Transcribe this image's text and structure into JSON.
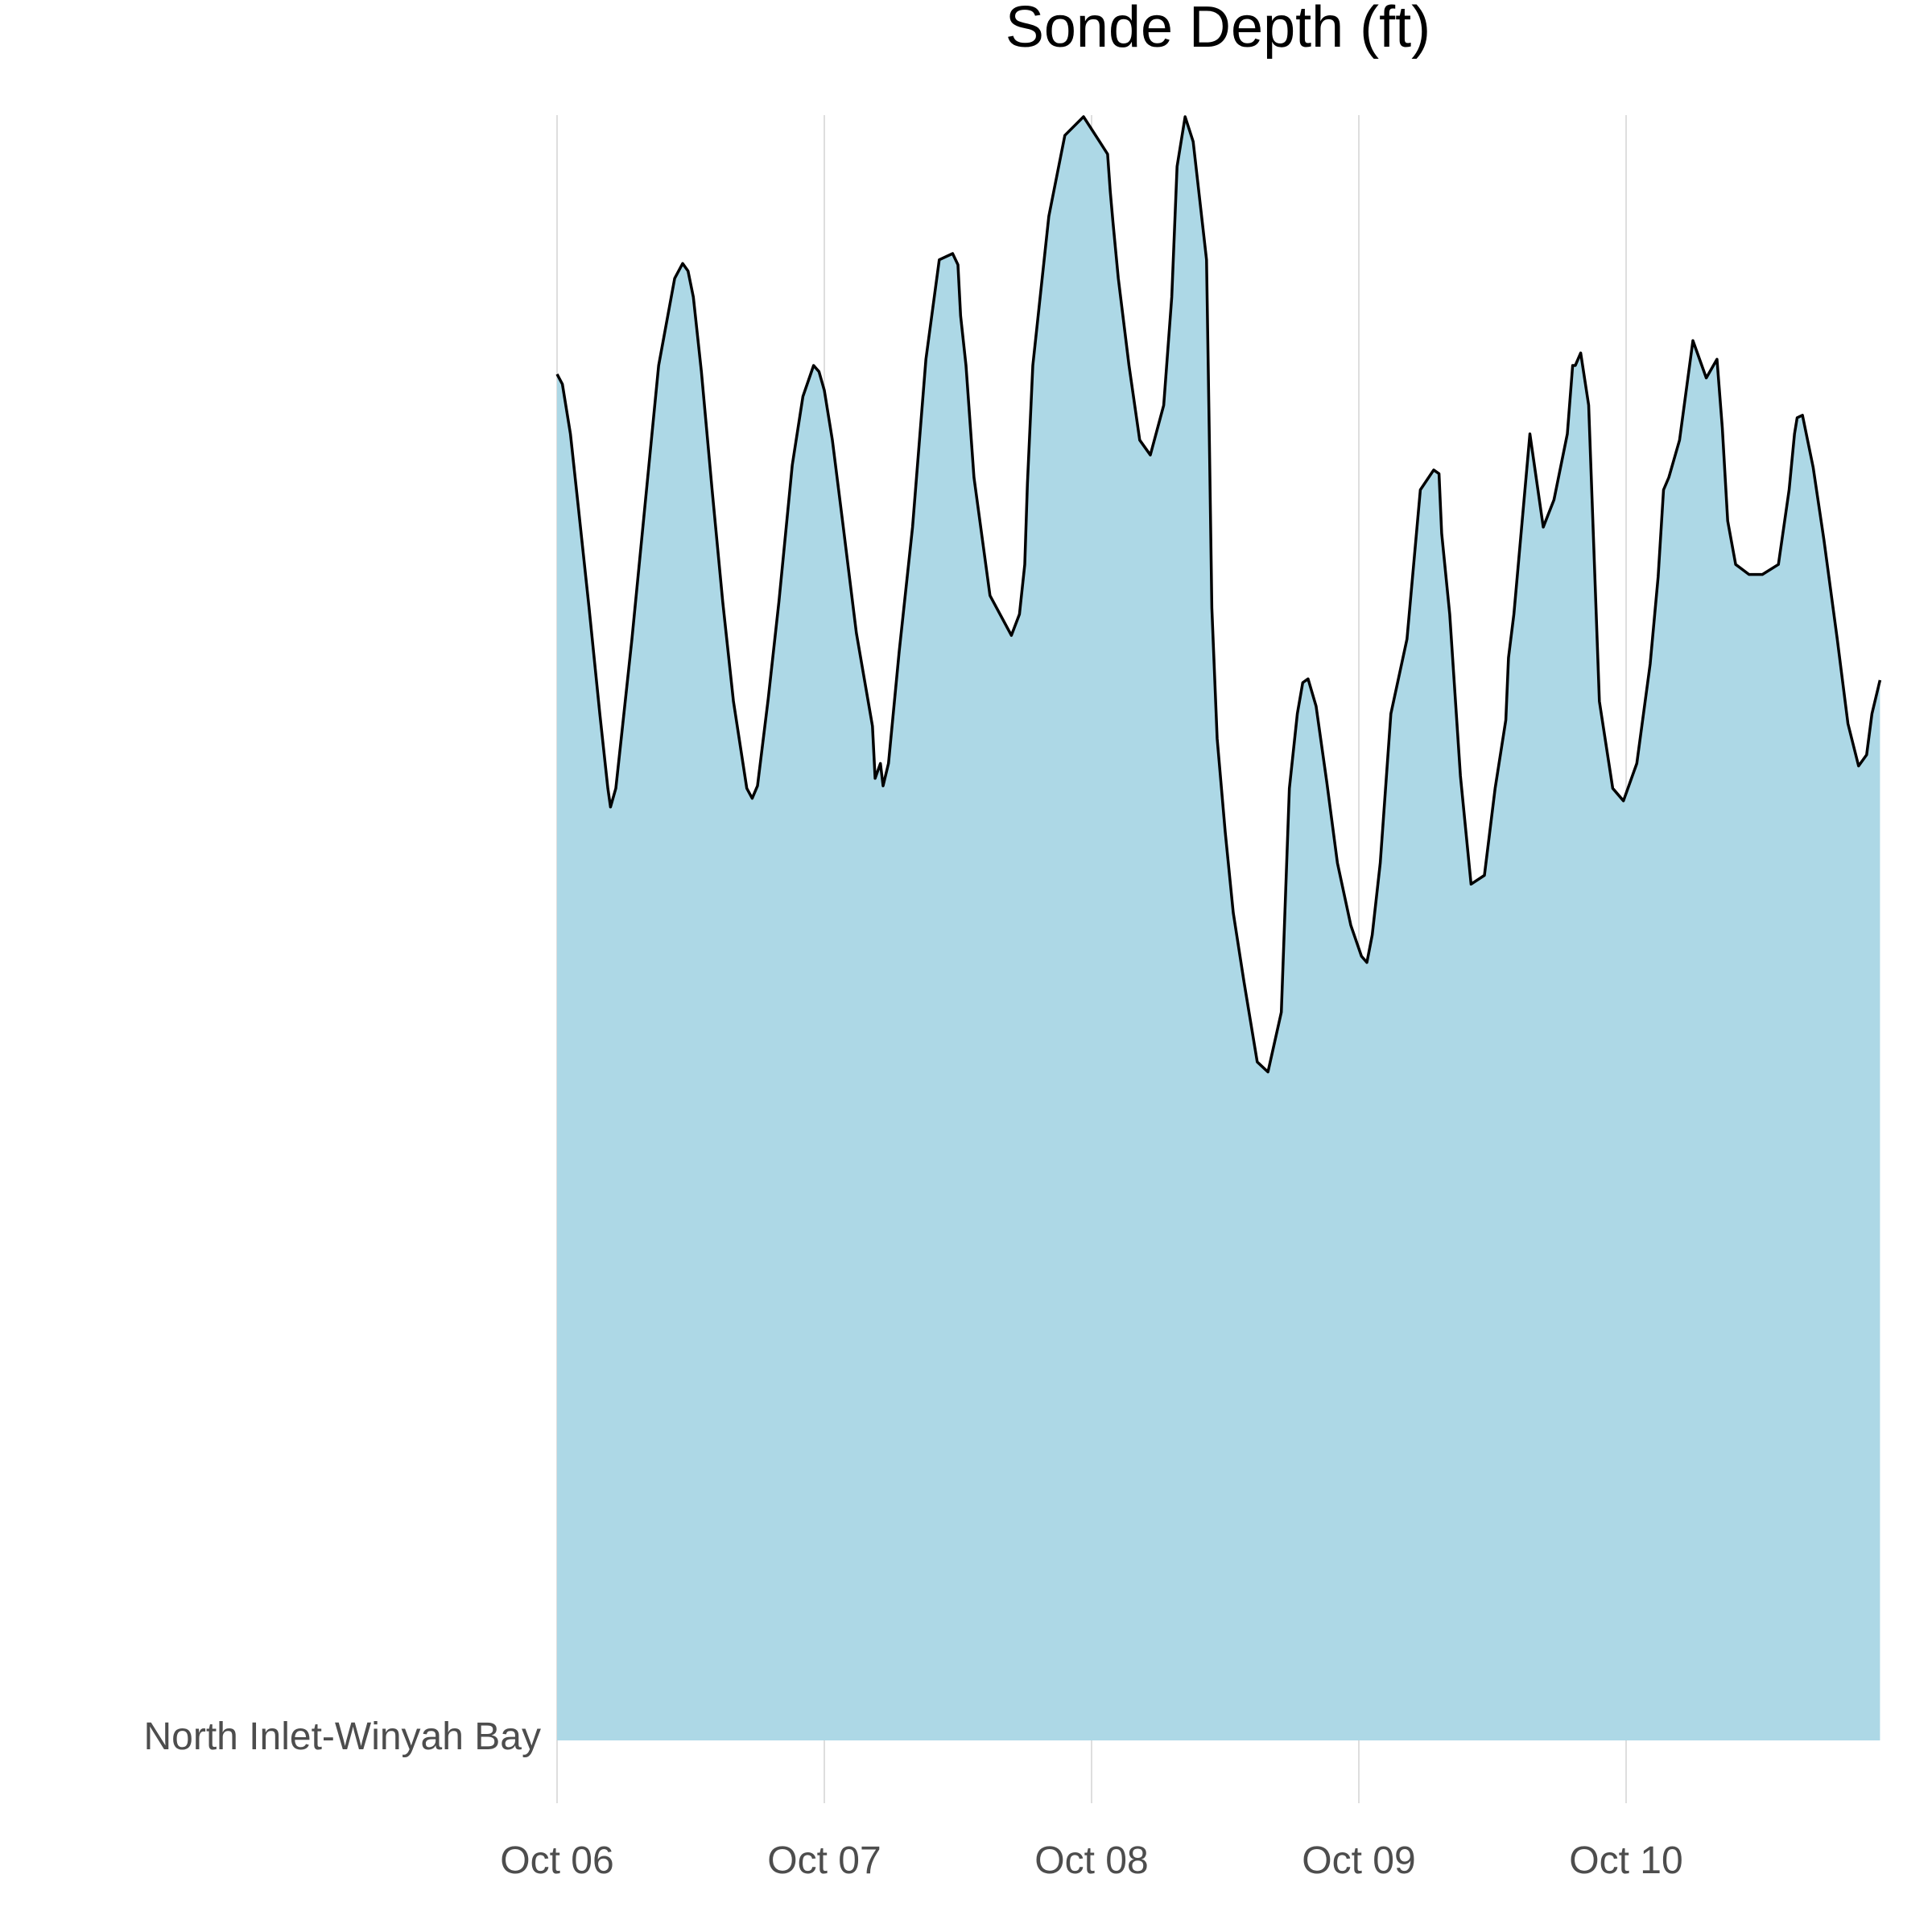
{
  "chart_data": {
    "type": "area",
    "title": "Sonde Depth (ft)",
    "xlabel": "",
    "ylabel": "",
    "y_category": "North Inlet-Winyah Bay",
    "x_tick_labels": [
      "Oct 06",
      "Oct 07",
      "Oct 08",
      "Oct 09",
      "Oct 10"
    ],
    "x_tick_days": [
      0,
      1,
      2,
      3,
      4
    ],
    "xlim_days": [
      0,
      4.95
    ],
    "ylim": [
      0,
      1
    ],
    "grid": "vertical major gridlines only",
    "fill_color": "#add8e6",
    "line_color": "#000000",
    "series": [
      {
        "x_days": [
          0.0,
          0.02,
          0.05,
          0.08,
          0.12,
          0.16,
          0.19,
          0.2,
          0.22,
          0.24,
          0.28,
          0.33,
          0.38,
          0.44,
          0.47,
          0.49,
          0.51,
          0.54,
          0.58,
          0.62,
          0.66,
          0.71,
          0.73,
          0.75,
          0.79,
          0.83,
          0.88,
          0.92,
          0.96,
          0.98,
          1.0,
          1.03,
          1.07,
          1.12,
          1.18,
          1.19,
          1.21,
          1.22,
          1.24,
          1.28,
          1.33,
          1.38,
          1.43,
          1.48,
          1.5,
          1.51,
          1.53,
          1.56,
          1.62,
          1.7,
          1.73,
          1.75,
          1.76,
          1.78,
          1.84,
          1.9,
          1.97,
          2.03,
          2.06,
          2.07,
          2.08,
          2.1,
          2.14,
          2.18,
          2.22,
          2.27,
          2.3,
          2.32,
          2.35,
          2.38,
          2.43,
          2.44,
          2.45,
          2.47,
          2.5,
          2.53,
          2.57,
          2.62,
          2.66,
          2.71,
          2.74,
          2.77,
          2.79,
          2.81,
          2.84,
          2.88,
          2.92,
          2.97,
          3.01,
          3.03,
          3.05,
          3.08,
          3.12,
          3.18,
          3.23,
          3.28,
          3.3,
          3.31,
          3.34,
          3.38,
          3.42,
          3.47,
          3.51,
          3.55,
          3.56,
          3.58,
          3.6,
          3.64,
          3.69,
          3.73,
          3.78,
          3.8,
          3.81,
          3.83,
          3.86,
          3.9,
          3.95,
          3.99,
          4.04,
          4.09,
          4.12,
          4.14,
          4.16,
          4.2,
          4.25,
          4.3,
          4.34,
          4.36,
          4.38,
          4.41,
          4.46,
          4.51,
          4.57,
          4.61,
          4.63,
          4.64,
          4.66,
          4.7,
          4.74,
          4.79,
          4.83,
          4.87,
          4.9,
          4.92,
          4.95
        ],
        "values": [
          0.793,
          0.785,
          0.745,
          0.685,
          0.605,
          0.52,
          0.46,
          0.445,
          0.46,
          0.5,
          0.58,
          0.69,
          0.8,
          0.87,
          0.882,
          0.876,
          0.855,
          0.795,
          0.7,
          0.61,
          0.53,
          0.46,
          0.452,
          0.462,
          0.532,
          0.61,
          0.72,
          0.775,
          0.8,
          0.795,
          0.78,
          0.74,
          0.672,
          0.585,
          0.51,
          0.468,
          0.48,
          0.462,
          0.48,
          0.57,
          0.67,
          0.805,
          0.885,
          0.89,
          0.881,
          0.84,
          0.8,
          0.71,
          0.615,
          0.583,
          0.6,
          0.64,
          0.705,
          0.8,
          0.92,
          0.985,
          1.0,
          0.98,
          0.97,
          0.94,
          0.915,
          0.87,
          0.8,
          0.74,
          0.728,
          0.768,
          0.855,
          0.96,
          1.0,
          0.98,
          0.885,
          0.75,
          0.605,
          0.5,
          0.425,
          0.36,
          0.305,
          0.24,
          0.232,
          0.28,
          0.46,
          0.52,
          0.545,
          0.548,
          0.526,
          0.465,
          0.4,
          0.35,
          0.325,
          0.32,
          0.342,
          0.4,
          0.52,
          0.58,
          0.7,
          0.716,
          0.713,
          0.665,
          0.6,
          0.47,
          0.383,
          0.39,
          0.46,
          0.515,
          0.565,
          0.6,
          0.648,
          0.745,
          0.67,
          0.692,
          0.745,
          0.8,
          0.8,
          0.81,
          0.768,
          0.53,
          0.46,
          0.45,
          0.48,
          0.56,
          0.63,
          0.7,
          0.71,
          0.74,
          0.82,
          0.79,
          0.805,
          0.75,
          0.675,
          0.64,
          0.632,
          0.632,
          0.64,
          0.7,
          0.745,
          0.758,
          0.76,
          0.718,
          0.66,
          0.58,
          0.512,
          0.478,
          0.487,
          0.52,
          0.547
        ]
      }
    ]
  }
}
